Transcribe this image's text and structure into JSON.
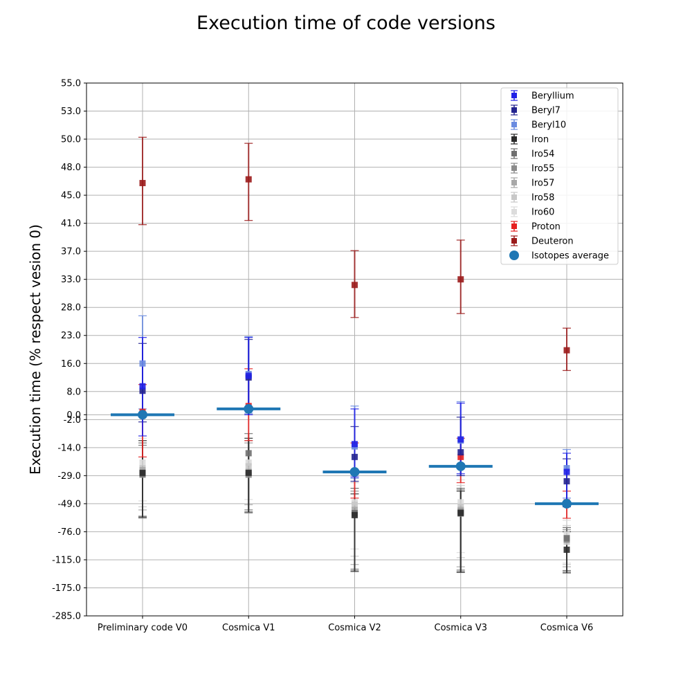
{
  "chart_data": {
    "type": "scatter",
    "title": "Execution time of code versions",
    "xlabel": "",
    "ylabel": "Execution time (% respect vesion 0)",
    "categories": [
      "Preliminary code V0",
      "Cosmica V1",
      "Cosmica V2",
      "Cosmica V3",
      "Cosmica V6"
    ],
    "yticks": [
      -285.0,
      -175.0,
      -115.0,
      -76.0,
      -49.0,
      -29.0,
      -14.0,
      -2.0,
      0.0,
      8.0,
      16.0,
      23.0,
      28.0,
      33.0,
      37.0,
      41.0,
      45.0,
      48.0,
      50.0,
      53.0,
      55.0
    ],
    "ytick_labels": [
      "-285.0",
      "-175.0",
      "-115.0",
      "-76.0",
      "-49.0",
      "-29.0",
      "-14.0",
      "-2.0",
      "0.0",
      "8.0",
      "16.0",
      "23.0",
      "28.0",
      "33.0",
      "37.0",
      "41.0",
      "45.0",
      "48.0",
      "50.0",
      "53.0",
      "55.0"
    ],
    "ylim": [
      -285.0,
      55.0
    ],
    "grid": true,
    "legend_position": "top-right",
    "series": [
      {
        "name": "Beryllium",
        "color": "#2020e6",
        "marker": "square",
        "values": [
          9.5,
          12.5,
          -12.5,
          -10.5,
          -27.0
        ],
        "err_low": [
          -9.0,
          0.0,
          -30.0,
          -28.0,
          -48.0
        ],
        "err_high": [
          22.5,
          22.5,
          2.0,
          4.0,
          -17.0
        ]
      },
      {
        "name": "Beryl7",
        "color": "#23238f",
        "marker": "square",
        "values": [
          8.2,
          12.0,
          -19.0,
          -16.5,
          -33.0
        ],
        "err_low": [
          -3.0,
          0.0,
          -33.0,
          -29.0,
          -52.0
        ],
        "err_high": [
          21.0,
          22.0,
          -5.0,
          -1.0,
          -20.0
        ]
      },
      {
        "name": "Beryl10",
        "color": "#6a8be0",
        "marker": "square",
        "values": [
          16.0,
          13.0,
          -13.5,
          -11.0,
          -25.0
        ],
        "err_low": [
          2.0,
          0.5,
          -31.0,
          -29.0,
          -45.0
        ],
        "err_high": [
          26.5,
          22.7,
          3.0,
          4.5,
          -15.0
        ]
      },
      {
        "name": "Iron",
        "color": "#2b2b2b",
        "marker": "square",
        "values": [
          -27.5,
          -27.5,
          -60.0,
          -58.0,
          -101.0
        ],
        "err_low": [
          -62.0,
          -57.0,
          -140.0,
          -142.0,
          -143.0
        ],
        "err_high": [
          -11.0,
          -10.0,
          -42.0,
          -40.0,
          -76.0
        ]
      },
      {
        "name": "Iro54",
        "color": "#707070",
        "marker": "square",
        "values": [
          -28.0,
          -17.0,
          -58.0,
          -57.0,
          -85.0
        ],
        "err_low": [
          -61.0,
          -55.0,
          -135.0,
          -137.0,
          -138.0
        ],
        "err_high": [
          -13.0,
          -8.0,
          -38.0,
          -38.0,
          -72.0
        ]
      },
      {
        "name": "Iro55",
        "color": "#8c8c8c",
        "marker": "square",
        "values": [
          -28.5,
          -28.5,
          -59.0,
          -58.5,
          -87.0
        ],
        "err_low": [
          -63.0,
          -58.0,
          -138.0,
          -140.0,
          -140.0
        ],
        "err_high": [
          -12.0,
          -11.0,
          -40.0,
          -39.0,
          -74.0
        ]
      },
      {
        "name": "Iro57",
        "color": "#a8a8a8",
        "marker": "square",
        "values": [
          -26.0,
          -27.0,
          -55.0,
          -55.0,
          -85.0
        ],
        "err_low": [
          -55.0,
          -50.0,
          -125.0,
          -130.0,
          -130.0
        ],
        "err_high": [
          -12.0,
          -12.0,
          -38.0,
          -38.0,
          -72.0
        ]
      },
      {
        "name": "Iro58",
        "color": "#c8c8c8",
        "marker": "square",
        "values": [
          -25.0,
          -24.0,
          -50.0,
          -52.0,
          -90.0
        ],
        "err_low": [
          -52.0,
          -49.0,
          -110.0,
          -112.0,
          -125.0
        ],
        "err_high": [
          -12.0,
          -12.0,
          -34.0,
          -36.0,
          -70.0
        ]
      },
      {
        "name": "Iro60",
        "color": "#dcdcdc",
        "marker": "square",
        "values": [
          -22.0,
          -22.0,
          -48.0,
          -48.0,
          -80.0
        ],
        "err_low": [
          -47.0,
          -46.0,
          -100.0,
          -105.0,
          -122.0
        ],
        "err_high": [
          -10.0,
          -10.0,
          -30.0,
          -32.0,
          -65.0
        ]
      },
      {
        "name": "Proton",
        "color": "#e62020",
        "marker": "square",
        "values": [
          1.0,
          3.0,
          -27.0,
          -19.0,
          -48.0
        ],
        "err_low": [
          -19.0,
          -11.0,
          -45.0,
          -34.0,
          -63.0
        ],
        "err_high": [
          10.0,
          14.5,
          -12.0,
          -10.0,
          -40.0
        ]
      },
      {
        "name": "Deuteron",
        "color": "#9b1b1b",
        "marker": "square",
        "values": [
          46.3,
          46.7,
          32.0,
          33.0,
          19.3
        ],
        "err_low": [
          40.8,
          41.4,
          26.2,
          26.9,
          14.0
        ],
        "err_high": [
          50.2,
          49.7,
          37.1,
          38.6,
          24.3
        ]
      },
      {
        "name": "Isotopes average",
        "color": "#1f77b4",
        "marker": "circle",
        "values": [
          0.0,
          2.0,
          -27.0,
          -24.0,
          -49.0
        ]
      }
    ]
  }
}
